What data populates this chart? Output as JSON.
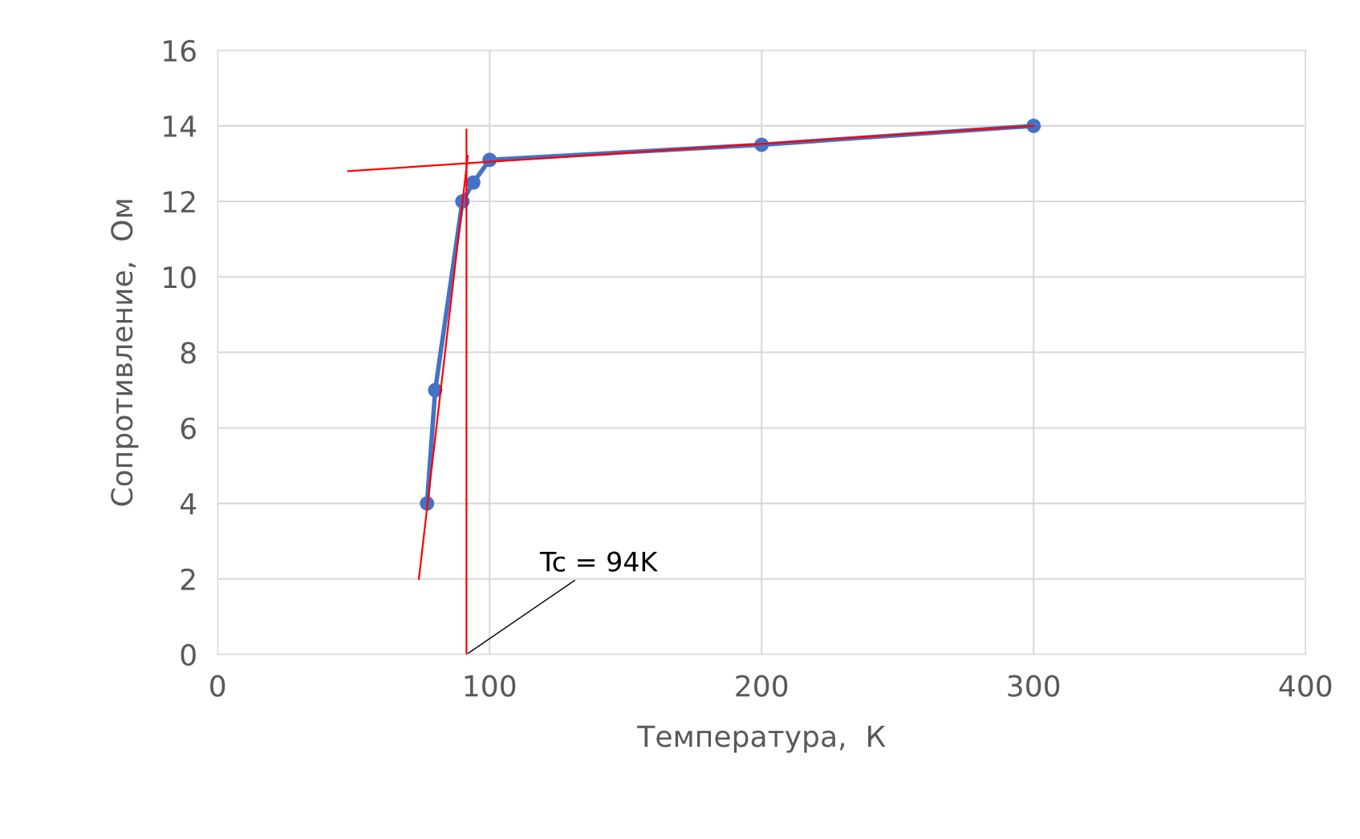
{
  "chart_data": {
    "type": "line",
    "xlabel": "Температура,  К",
    "ylabel": "Сопротивление,  Ом",
    "xlim": [
      0,
      400
    ],
    "xticks": [
      0,
      100,
      200,
      300,
      400
    ],
    "ylim": [
      0,
      16
    ],
    "yticks": [
      0,
      2,
      4,
      6,
      8,
      10,
      12,
      14,
      16
    ],
    "grid": true,
    "legend": false,
    "series": [
      {
        "color": "#4472c4",
        "marker": "circle",
        "line_style": "solid",
        "x": [
          77,
          80,
          90,
          94,
          100,
          200,
          300
        ],
        "values": [
          4,
          7,
          12,
          12.5,
          13.1,
          13.5,
          14
        ]
      },
      {
        "color": "#ff0000",
        "marker": "none",
        "line_style": "solid",
        "x": [
          74,
          92
        ],
        "values": [
          2,
          13.2
        ]
      },
      {
        "color": "#ff0000",
        "marker": "none",
        "line_style": "solid",
        "x": [
          48,
          300
        ],
        "values": [
          12.8,
          14
        ]
      },
      {
        "color": "#ff0000",
        "marker": "none",
        "line_style": "solid",
        "x": [
          91.5,
          91.5
        ],
        "values": [
          0,
          13.9
        ]
      }
    ],
    "annotations": [
      {
        "text": "Tc = 94K",
        "x": 91.5,
        "y": 0
      }
    ]
  }
}
